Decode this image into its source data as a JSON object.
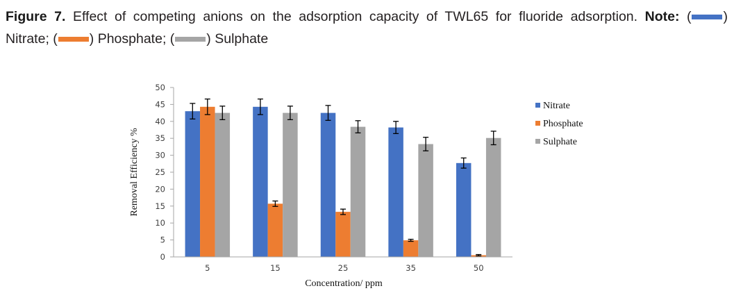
{
  "caption": {
    "label": "Figure 7.",
    "text": " Effect of competing anions on the adsorption capacity of TWL65 for fluoride adsorption. ",
    "note_label": "Note:",
    "items": [
      {
        "name": "Nitrate",
        "color": "#4472c4"
      },
      {
        "name": "Phosphate",
        "color": "#ed7d31"
      },
      {
        "name": "Sulphate",
        "color": "#a5a5a5"
      }
    ]
  },
  "chart_data": {
    "type": "bar",
    "title": "",
    "xlabel": "Concentration/ ppm",
    "ylabel": "Removal Efficiency %",
    "categories": [
      "5",
      "15",
      "25",
      "35",
      "50"
    ],
    "ylim": [
      0,
      50
    ],
    "yticks": [
      0,
      5,
      10,
      15,
      20,
      25,
      30,
      35,
      40,
      45,
      50
    ],
    "grid": false,
    "legend_position": "right",
    "series": [
      {
        "name": "Nitrate",
        "color": "#4472c4",
        "values": [
          43.0,
          44.3,
          42.5,
          38.2,
          27.7
        ],
        "errors": [
          2.3,
          2.3,
          2.2,
          1.8,
          1.5
        ]
      },
      {
        "name": "Phosphate",
        "color": "#ed7d31",
        "values": [
          44.3,
          15.7,
          13.3,
          4.9,
          0.5
        ],
        "errors": [
          2.3,
          0.8,
          0.8,
          0.3,
          0.2
        ]
      },
      {
        "name": "Sulphate",
        "color": "#a5a5a5",
        "values": [
          42.5,
          42.5,
          38.4,
          33.3,
          35.1
        ],
        "errors": [
          2.0,
          2.0,
          1.8,
          2.0,
          2.0
        ]
      }
    ]
  }
}
